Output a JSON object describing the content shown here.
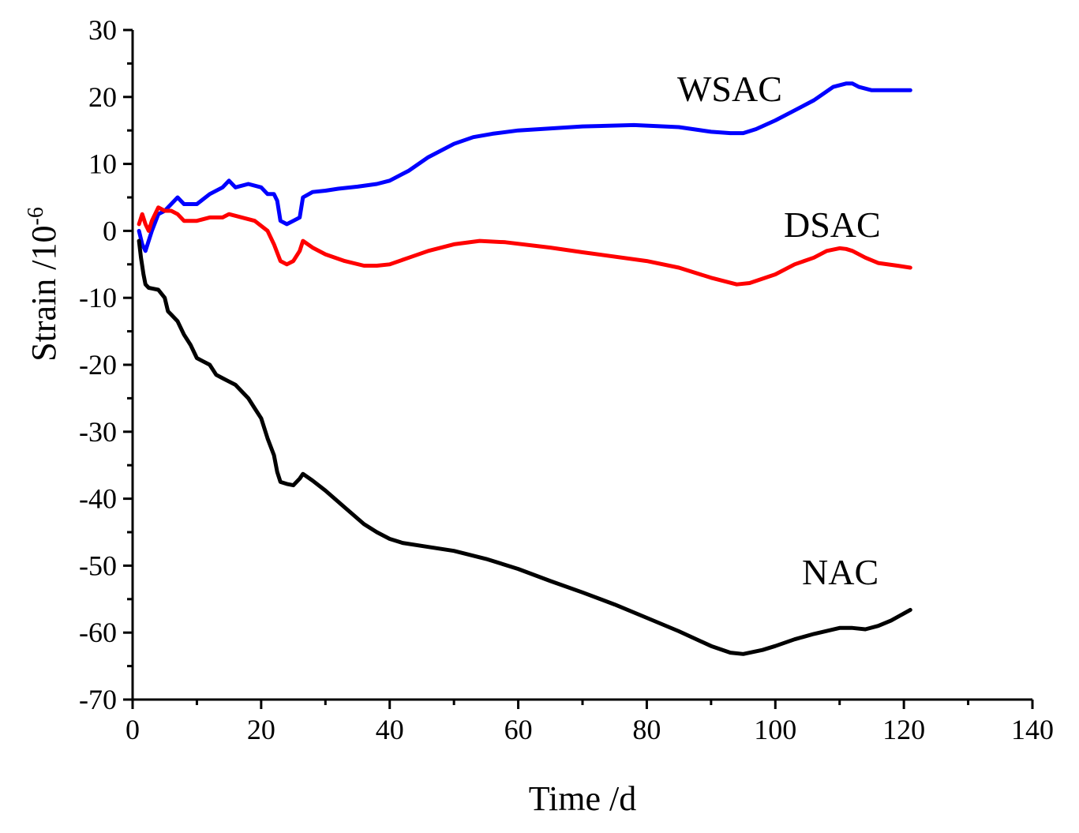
{
  "chart_data": {
    "type": "line",
    "title": "",
    "xlabel": "Time /d",
    "ylabel_main": "Strain /10",
    "ylabel_exponent": "-6",
    "xlim": [
      0,
      140
    ],
    "ylim": [
      -70,
      30
    ],
    "xticks": [
      0,
      20,
      40,
      60,
      80,
      100,
      120,
      140
    ],
    "yticks": [
      30,
      20,
      10,
      0,
      -10,
      -20,
      -30,
      -40,
      -50,
      -60,
      -70
    ],
    "xtick_labels": [
      "0",
      "20",
      "40",
      "60",
      "80",
      "100",
      "120",
      "140"
    ],
    "ytick_labels": [
      "30",
      "20",
      "10",
      "0",
      "-10",
      "-20",
      "-30",
      "-40",
      "-50",
      "-60",
      "-70"
    ],
    "grid": false,
    "series": [
      {
        "name": "WSAC",
        "color": "#0000ff",
        "label_text": "WSAC",
        "points": [
          [
            1,
            0
          ],
          [
            1.5,
            -2
          ],
          [
            2,
            -3
          ],
          [
            3,
            0
          ],
          [
            4,
            2.5
          ],
          [
            5,
            3
          ],
          [
            6,
            4
          ],
          [
            7,
            5
          ],
          [
            8,
            4
          ],
          [
            10,
            4
          ],
          [
            12,
            5.5
          ],
          [
            14,
            6.5
          ],
          [
            15,
            7.5
          ],
          [
            16,
            6.5
          ],
          [
            18,
            7
          ],
          [
            20,
            6.5
          ],
          [
            21,
            5.5
          ],
          [
            22,
            5.5
          ],
          [
            22.5,
            4.5
          ],
          [
            23,
            1.5
          ],
          [
            24,
            1
          ],
          [
            25,
            1.5
          ],
          [
            26,
            2
          ],
          [
            26.5,
            5
          ],
          [
            28,
            5.8
          ],
          [
            30,
            6
          ],
          [
            32,
            6.3
          ],
          [
            35,
            6.6
          ],
          [
            38,
            7
          ],
          [
            40,
            7.5
          ],
          [
            43,
            9
          ],
          [
            46,
            11
          ],
          [
            50,
            13
          ],
          [
            53,
            14
          ],
          [
            56,
            14.5
          ],
          [
            60,
            15
          ],
          [
            70,
            15.6
          ],
          [
            78,
            15.8
          ],
          [
            85,
            15.5
          ],
          [
            90,
            14.8
          ],
          [
            93,
            14.6
          ],
          [
            95,
            14.6
          ],
          [
            97,
            15.2
          ],
          [
            100,
            16.5
          ],
          [
            103,
            18
          ],
          [
            106,
            19.5
          ],
          [
            109,
            21.5
          ],
          [
            111,
            22
          ],
          [
            112,
            22
          ],
          [
            113,
            21.5
          ],
          [
            115,
            21
          ],
          [
            118,
            21
          ],
          [
            121,
            21
          ]
        ]
      },
      {
        "name": "DSAC",
        "color": "#ff0000",
        "label_text": "DSAC",
        "points": [
          [
            1,
            1
          ],
          [
            1.5,
            2.5
          ],
          [
            2,
            1
          ],
          [
            2.5,
            0
          ],
          [
            3,
            1.5
          ],
          [
            4,
            3.5
          ],
          [
            5,
            3
          ],
          [
            6,
            3
          ],
          [
            7,
            2.5
          ],
          [
            8,
            1.5
          ],
          [
            10,
            1.5
          ],
          [
            12,
            2
          ],
          [
            14,
            2
          ],
          [
            15,
            2.5
          ],
          [
            17,
            2
          ],
          [
            19,
            1.5
          ],
          [
            21,
            0
          ],
          [
            22,
            -2
          ],
          [
            23,
            -4.5
          ],
          [
            24,
            -5
          ],
          [
            25,
            -4.5
          ],
          [
            26,
            -3
          ],
          [
            26.5,
            -1.5
          ],
          [
            28,
            -2.5
          ],
          [
            30,
            -3.5
          ],
          [
            33,
            -4.5
          ],
          [
            36,
            -5.2
          ],
          [
            38,
            -5.2
          ],
          [
            40,
            -5
          ],
          [
            43,
            -4
          ],
          [
            46,
            -3
          ],
          [
            50,
            -2
          ],
          [
            54,
            -1.5
          ],
          [
            58,
            -1.7
          ],
          [
            65,
            -2.5
          ],
          [
            70,
            -3.2
          ],
          [
            80,
            -4.5
          ],
          [
            85,
            -5.5
          ],
          [
            90,
            -7
          ],
          [
            94,
            -8
          ],
          [
            96,
            -7.8
          ],
          [
            100,
            -6.5
          ],
          [
            103,
            -5
          ],
          [
            106,
            -4
          ],
          [
            108,
            -3
          ],
          [
            110,
            -2.6
          ],
          [
            111,
            -2.7
          ],
          [
            112,
            -3
          ],
          [
            114,
            -4
          ],
          [
            116,
            -4.8
          ],
          [
            119,
            -5.2
          ],
          [
            121,
            -5.5
          ]
        ]
      },
      {
        "name": "NAC",
        "color": "#000000",
        "label_text": "NAC",
        "points": [
          [
            1,
            -1.5
          ],
          [
            1.3,
            -4
          ],
          [
            1.7,
            -6.5
          ],
          [
            2,
            -8
          ],
          [
            2.5,
            -8.5
          ],
          [
            3,
            -8.6
          ],
          [
            4,
            -8.8
          ],
          [
            5,
            -10
          ],
          [
            5.5,
            -12
          ],
          [
            6,
            -12.5
          ],
          [
            7,
            -13.5
          ],
          [
            8,
            -15.5
          ],
          [
            9,
            -17
          ],
          [
            10,
            -19
          ],
          [
            11,
            -19.5
          ],
          [
            12,
            -20
          ],
          [
            13,
            -21.5
          ],
          [
            14,
            -22
          ],
          [
            15,
            -22.5
          ],
          [
            16,
            -23
          ],
          [
            17,
            -24
          ],
          [
            18,
            -25
          ],
          [
            19,
            -26.5
          ],
          [
            20,
            -28
          ],
          [
            21,
            -31
          ],
          [
            22,
            -33.5
          ],
          [
            22.5,
            -36
          ],
          [
            23,
            -37.5
          ],
          [
            24,
            -37.8
          ],
          [
            25,
            -38
          ],
          [
            26,
            -37
          ],
          [
            26.5,
            -36.3
          ],
          [
            28,
            -37.3
          ],
          [
            30,
            -38.8
          ],
          [
            33,
            -41.3
          ],
          [
            36,
            -43.8
          ],
          [
            38,
            -45
          ],
          [
            40,
            -46
          ],
          [
            42,
            -46.6
          ],
          [
            46,
            -47.2
          ],
          [
            50,
            -47.8
          ],
          [
            55,
            -49
          ],
          [
            60,
            -50.5
          ],
          [
            65,
            -52.3
          ],
          [
            70,
            -54
          ],
          [
            75,
            -55.8
          ],
          [
            80,
            -57.8
          ],
          [
            85,
            -59.8
          ],
          [
            90,
            -62
          ],
          [
            93,
            -63
          ],
          [
            95,
            -63.2
          ],
          [
            98,
            -62.6
          ],
          [
            100,
            -62
          ],
          [
            103,
            -61
          ],
          [
            106,
            -60.2
          ],
          [
            110,
            -59.3
          ],
          [
            112,
            -59.3
          ],
          [
            114,
            -59.5
          ],
          [
            116,
            -59
          ],
          [
            118,
            -58.2
          ],
          [
            121,
            -56.6
          ]
        ]
      }
    ]
  }
}
